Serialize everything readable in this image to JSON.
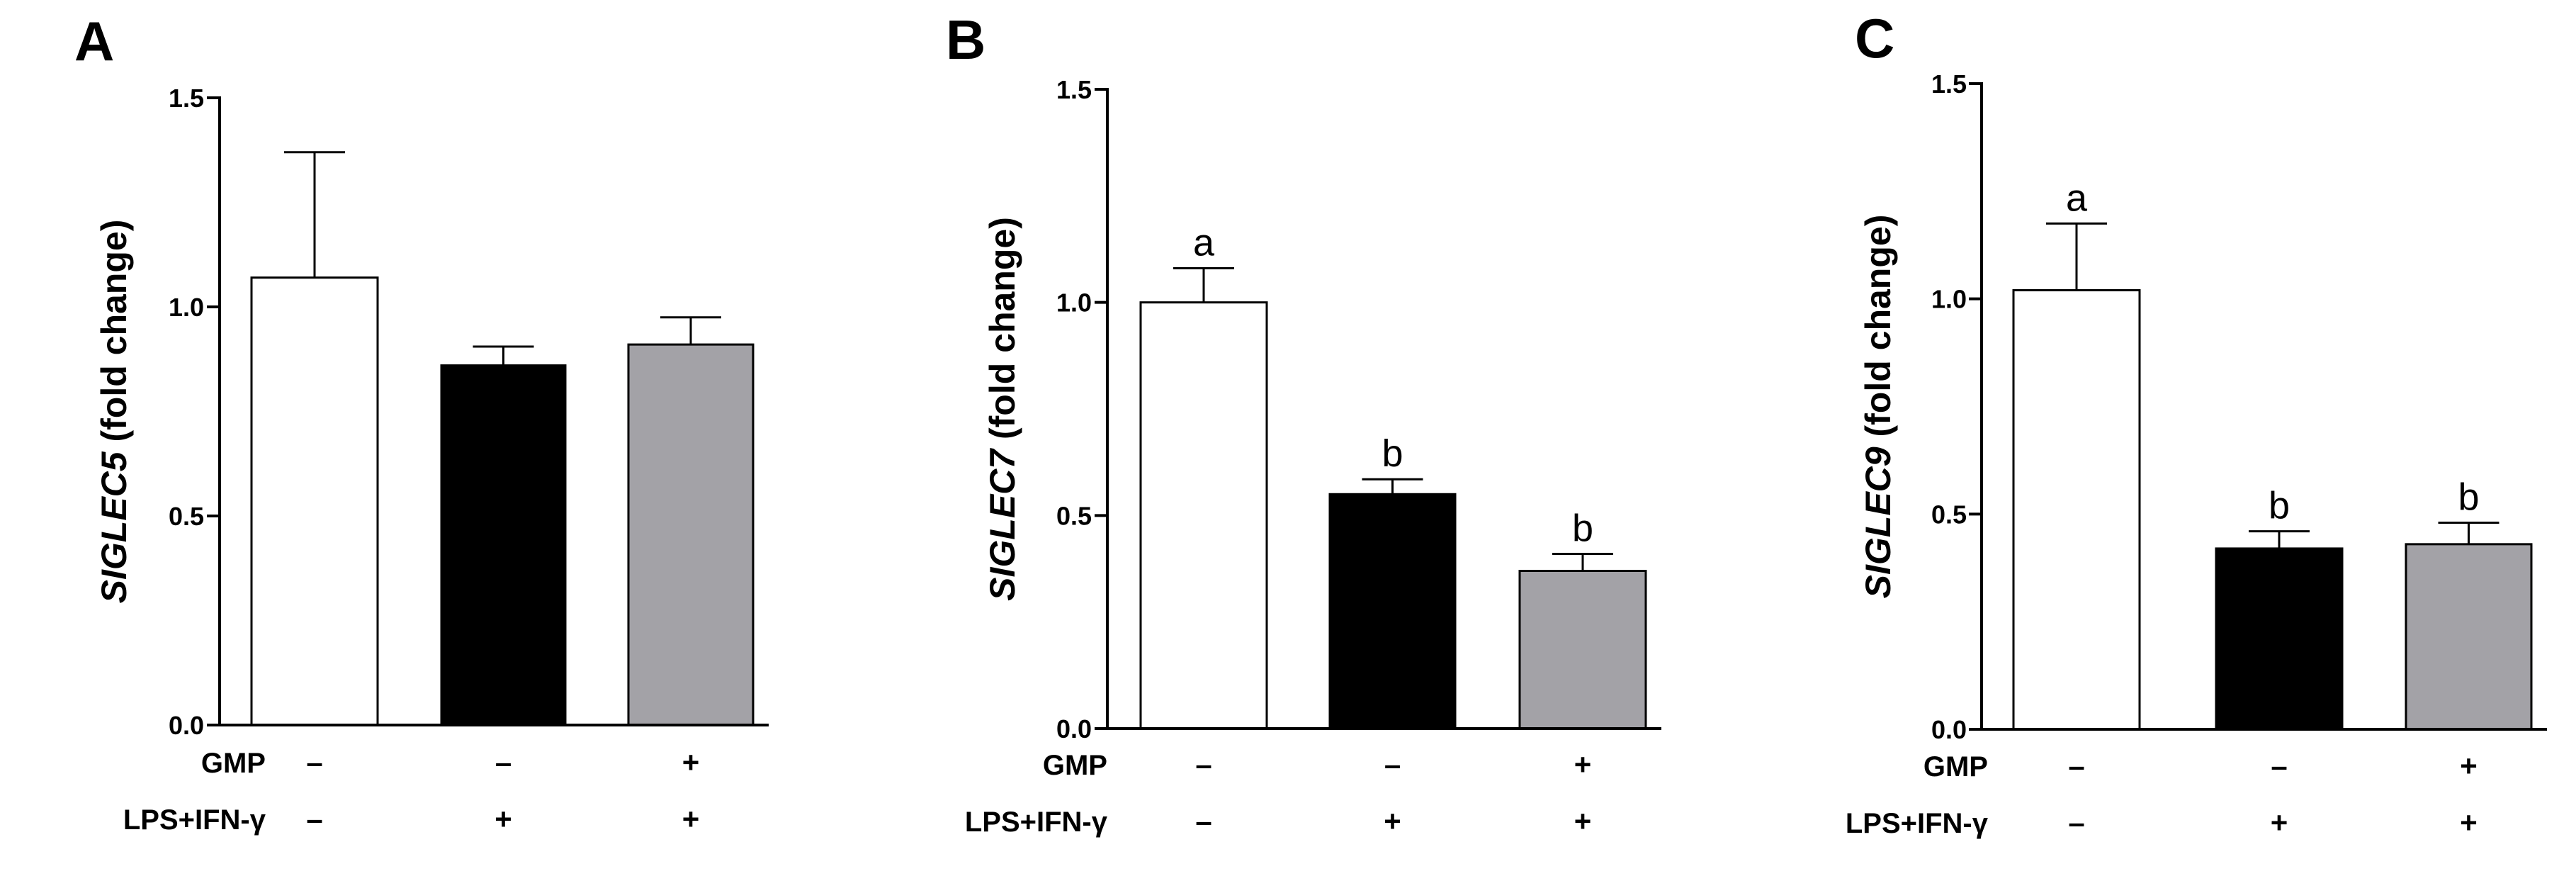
{
  "colors": {
    "white_bar": "#ffffff",
    "black_bar": "#000000",
    "gray_bar": "#a3a2a7"
  },
  "chart_data": [
    {
      "type": "bar",
      "panel": "A",
      "ylabel_gene": "SIGLEC5",
      "ylabel_suffix": " (fold change)",
      "ylim": [
        0,
        1.5
      ],
      "yticks": [
        "0.0",
        "0.5",
        "1.0",
        "1.5"
      ],
      "yticks_values": [
        0,
        0.5,
        1.0,
        1.5
      ],
      "values": [
        1.07,
        0.86,
        0.91
      ],
      "errors": [
        0.3,
        0.045,
        0.065
      ],
      "significance": [
        "",
        "",
        ""
      ],
      "bar_colors": [
        "#ffffff",
        "#000000",
        "#a3a2a7"
      ],
      "rows": [
        {
          "label": "GMP",
          "signs": [
            "–",
            "–",
            "+"
          ]
        },
        {
          "label": "LPS+IFN-γ",
          "signs": [
            "–",
            "+",
            "+"
          ]
        }
      ]
    },
    {
      "type": "bar",
      "panel": "B",
      "ylabel_gene": "SIGLEC7",
      "ylabel_suffix": " (fold change)",
      "ylim": [
        0,
        1.5
      ],
      "yticks": [
        "0.0",
        "0.5",
        "1.0",
        "1.5"
      ],
      "yticks_values": [
        0,
        0.5,
        1.0,
        1.5
      ],
      "values": [
        1.0,
        0.55,
        0.37
      ],
      "errors": [
        0.08,
        0.035,
        0.04
      ],
      "significance": [
        "a",
        "b",
        "b"
      ],
      "bar_colors": [
        "#ffffff",
        "#000000",
        "#a3a2a7"
      ],
      "rows": [
        {
          "label": "GMP",
          "signs": [
            "–",
            "–",
            "+"
          ]
        },
        {
          "label": "LPS+IFN-γ",
          "signs": [
            "–",
            "+",
            "+"
          ]
        }
      ]
    },
    {
      "type": "bar",
      "panel": "C",
      "ylabel_gene": "SIGLEC9",
      "ylabel_suffix": " (fold change)",
      "ylim": [
        0,
        1.5
      ],
      "yticks": [
        "0.0",
        "0.5",
        "1.0",
        "1.5"
      ],
      "yticks_values": [
        0,
        0.5,
        1.0,
        1.5
      ],
      "values": [
        1.02,
        0.42,
        0.43
      ],
      "errors": [
        0.155,
        0.04,
        0.05
      ],
      "significance": [
        "a",
        "b",
        "b"
      ],
      "bar_colors": [
        "#ffffff",
        "#000000",
        "#a3a2a7"
      ],
      "rows": [
        {
          "label": "GMP",
          "signs": [
            "–",
            "–",
            "+"
          ]
        },
        {
          "label": "LPS+IFN-γ",
          "signs": [
            "–",
            "+",
            "+"
          ]
        }
      ]
    }
  ]
}
